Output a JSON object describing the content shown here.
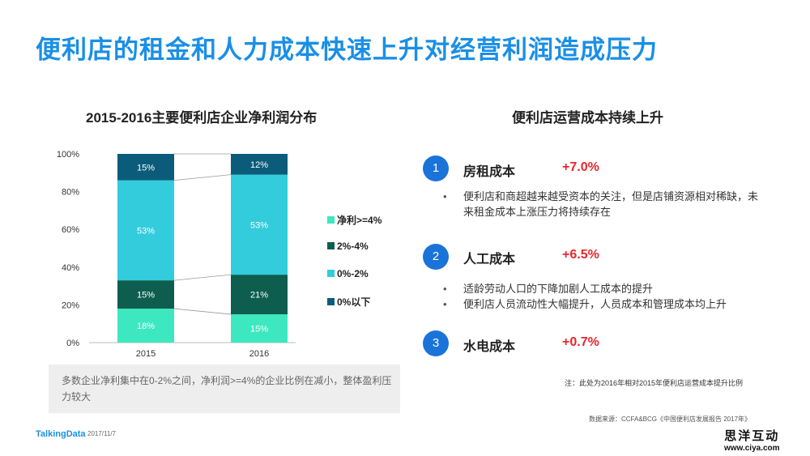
{
  "title": "便利店的租金和人力成本快速上升对经营利润造成压力",
  "colors": {
    "accent": "#1a8fe6",
    "red_value": "#e8262a",
    "circle": "#1a73d9"
  },
  "chart_data": {
    "type": "bar",
    "stacked": true,
    "title": "2015-2016主要便利店企业净利润分布",
    "categories": [
      "2015",
      "2016"
    ],
    "ylim": [
      0,
      100
    ],
    "yticks": [
      "0%",
      "20%",
      "40%",
      "60%",
      "80%",
      "100%"
    ],
    "legend_position": "right",
    "series": [
      {
        "name": "0%以下",
        "values": [
          15,
          12
        ],
        "labels": [
          "15%",
          "12%"
        ],
        "color": "#0a5c7a"
      },
      {
        "name": "0%-2%",
        "values": [
          53,
          53
        ],
        "labels": [
          "53%",
          "53%"
        ],
        "color": "#33ccdd"
      },
      {
        "name": "2%-4%",
        "values": [
          15,
          21
        ],
        "labels": [
          "15%",
          "21%"
        ],
        "color": "#0d5e4f"
      },
      {
        "name": "净利>=4%",
        "values": [
          18,
          15
        ],
        "labels": [
          "18%",
          "15%"
        ],
        "color": "#3de8c0"
      }
    ]
  },
  "chart_note": "多数企业净利集中在0-2%之间，净利润>=4%的企业比例在减小，整体盈利压力较大",
  "right_title": "便利店运营成本持续上升",
  "costs": [
    {
      "number": "1",
      "label": "房租成本",
      "value": "+7.0%",
      "bullets": [
        "便利店和商超越来越受资本的关注，但是店铺资源相对稀缺，未来租金成本上涨压力将持续存在"
      ]
    },
    {
      "number": "2",
      "label": "人工成本",
      "value": "+6.5%",
      "bullets": [
        "适龄劳动人口的下降加剧人工成本的提升",
        "便利店人员流动性大幅提升，人员成本和管理成本均上升"
      ]
    },
    {
      "number": "3",
      "label": "水电成本",
      "value": "+0.7%",
      "bullets": []
    }
  ],
  "footnote": "注：此处为2016年相对2015年便利店运营成本提升比例",
  "source": "数据来源：CCFA&BCG《中国便利店发展报告 2017年》",
  "footer": {
    "logo": "TalkingData",
    "date": "2017/11/7"
  },
  "watermark": {
    "cn": "思洋互动",
    "url": "www.ciya.com"
  }
}
